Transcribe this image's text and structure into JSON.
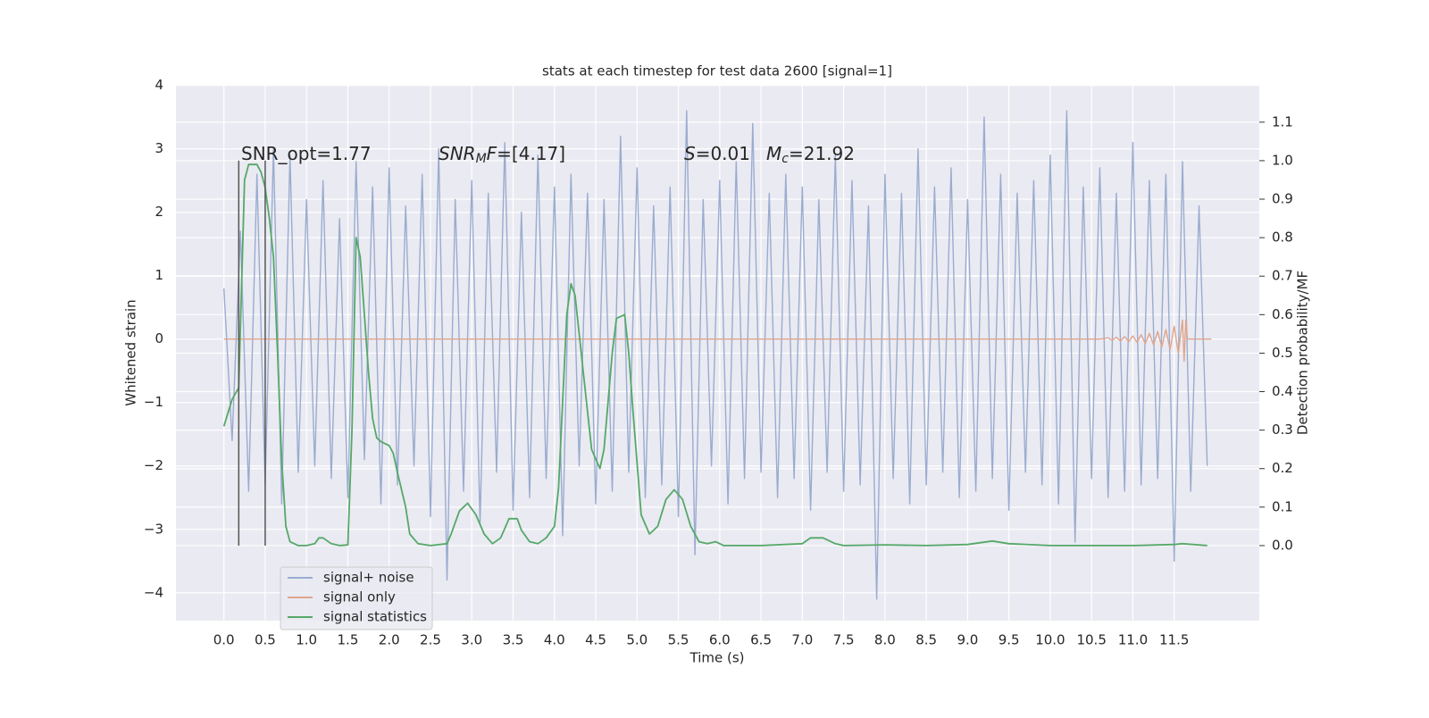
{
  "chart_data": {
    "type": "line",
    "title": "stats at each timestep for test data 2600 [signal=1]",
    "xlabel": "Time (s)",
    "ylabel": "Whitened strain",
    "y2label": "Detection probability/MF",
    "xlim": [
      -0.58,
      12.53
    ],
    "ylim": [
      -4.44,
      4.01
    ],
    "y2lim": [
      -0.195,
      1.197
    ],
    "xticks": [
      {
        "value": 0,
        "label": "0.0"
      },
      0.5,
      {
        "value": 1,
        "label": "1.0"
      },
      1.5,
      {
        "value": 2,
        "label": "2.0"
      },
      2.5,
      {
        "value": 3,
        "label": "3.0"
      },
      3.5,
      {
        "value": 4,
        "label": "4.0"
      },
      4.5,
      {
        "value": 5,
        "label": "5.0"
      },
      5.5,
      {
        "value": 6,
        "label": "6.0"
      },
      6.5,
      {
        "value": 7,
        "label": "7.0"
      },
      7.5,
      {
        "value": 8,
        "label": "8.0"
      },
      8.5,
      {
        "value": 9,
        "label": "9.0"
      },
      9.5,
      {
        "value": 10,
        "label": "10.0"
      },
      10.5,
      {
        "value": 11,
        "label": "11.0"
      },
      11.5
    ],
    "yticks": [
      {
        "value": -4,
        "label": "−4"
      },
      {
        "value": -3,
        "label": "−3"
      },
      {
        "value": -2,
        "label": "−2"
      },
      {
        "value": -1,
        "label": "−1"
      },
      0,
      1,
      2,
      3,
      4
    ],
    "y2ticks": [
      {
        "value": 0,
        "label": "0.0"
      },
      0.1,
      0.2,
      0.3,
      0.4,
      0.5,
      0.6,
      0.7,
      0.8,
      0.9,
      {
        "value": 1,
        "label": "1.0"
      },
      1.1
    ],
    "grid": true,
    "annotations": [
      [
        {
          "text": "SNR_opt=1.77"
        }
      ],
      [
        {
          "text": "SNR",
          "style": "italic"
        },
        {
          "text": "M",
          "style": "italic-sub"
        },
        {
          "text": "F",
          "style": "italic"
        },
        {
          "text": "=[4.17]"
        }
      ],
      [
        {
          "text": "S",
          "style": "italic"
        },
        {
          "text": "=0.01"
        }
      ],
      [
        {
          "text": "M",
          "style": "italic"
        },
        {
          "text": "c",
          "style": "italic-sub"
        },
        {
          "text": "=21.92"
        }
      ]
    ],
    "vlines": {
      "x": [
        0.18,
        0.5
      ],
      "color": "#555555"
    },
    "series": [
      {
        "name": "signal+ noise",
        "color": "#9aaccf",
        "x": [
          0.0,
          0.1,
          0.2,
          0.3,
          0.4,
          0.5,
          0.6,
          0.7,
          0.8,
          0.9,
          1.0,
          1.1,
          1.2,
          1.3,
          1.4,
          1.5,
          1.6,
          1.7,
          1.8,
          1.9,
          2.0,
          2.1,
          2.2,
          2.3,
          2.4,
          2.5,
          2.6,
          2.7,
          2.8,
          2.9,
          3.0,
          3.1,
          3.2,
          3.3,
          3.4,
          3.5,
          3.6,
          3.7,
          3.8,
          3.9,
          4.0,
          4.1,
          4.2,
          4.3,
          4.4,
          4.5,
          4.6,
          4.7,
          4.8,
          4.9,
          5.0,
          5.1,
          5.2,
          5.3,
          5.4,
          5.5,
          5.6,
          5.7,
          5.8,
          5.9,
          6.0,
          6.1,
          6.2,
          6.3,
          6.4,
          6.5,
          6.6,
          6.7,
          6.8,
          6.9,
          7.0,
          7.1,
          7.2,
          7.3,
          7.4,
          7.5,
          7.6,
          7.7,
          7.8,
          7.9,
          8.0,
          8.1,
          8.2,
          8.3,
          8.4,
          8.5,
          8.6,
          8.7,
          8.8,
          8.9,
          9.0,
          9.1,
          9.2,
          9.3,
          9.4,
          9.5,
          9.6,
          9.7,
          9.8,
          9.9,
          10.0,
          10.1,
          10.2,
          10.3,
          10.4,
          10.5,
          10.6,
          10.7,
          10.8,
          10.9,
          11.0,
          11.1,
          11.2,
          11.3,
          11.4,
          11.5,
          11.6,
          11.7,
          11.8,
          11.9
        ],
        "values": [
          0.8,
          -1.6,
          1.7,
          -2.4,
          2.6,
          -2.3,
          3.0,
          -2.6,
          2.9,
          -2.1,
          2.2,
          -2.0,
          2.5,
          -2.2,
          1.9,
          -2.5,
          2.8,
          -1.9,
          2.4,
          -2.6,
          2.7,
          -2.3,
          2.1,
          -2.0,
          2.6,
          -2.8,
          3.0,
          -3.8,
          2.2,
          -2.4,
          2.5,
          -2.9,
          2.3,
          -2.1,
          3.1,
          -2.7,
          2.0,
          -2.5,
          2.9,
          -2.2,
          2.4,
          -3.1,
          2.6,
          -2.0,
          2.3,
          -2.6,
          2.2,
          -2.4,
          3.2,
          -2.1,
          2.7,
          -2.5,
          2.1,
          -2.3,
          2.4,
          -2.8,
          3.6,
          -3.4,
          2.2,
          -2.0,
          2.5,
          -2.6,
          2.8,
          -2.2,
          3.4,
          -2.1,
          2.3,
          -2.5,
          2.6,
          -2.2,
          2.4,
          -2.7,
          2.2,
          -2.1,
          2.9,
          -2.4,
          2.5,
          -2.3,
          2.1,
          -4.1,
          2.6,
          -2.2,
          2.3,
          -2.6,
          3.0,
          -2.3,
          2.4,
          -2.1,
          2.7,
          -2.5,
          2.2,
          -2.4,
          3.5,
          -2.2,
          2.6,
          -2.7,
          2.3,
          -2.1,
          2.5,
          -2.3,
          2.9,
          -2.6,
          3.6,
          -3.2,
          2.4,
          -2.2,
          2.7,
          -2.5,
          2.3,
          -2.4,
          3.1,
          -2.3,
          2.5,
          -2.2,
          2.6,
          -3.5,
          2.8,
          -2.4,
          2.1,
          -2.0
        ]
      },
      {
        "name": "signal only",
        "color": "#e0a58c",
        "x": [
          0,
          10.6,
          10.7,
          10.75,
          10.8,
          10.85,
          10.9,
          10.95,
          11.0,
          11.05,
          11.1,
          11.15,
          11.2,
          11.25,
          11.3,
          11.35,
          11.4,
          11.45,
          11.5,
          11.55,
          11.6,
          11.62,
          11.64,
          11.66,
          11.7,
          11.95
        ],
        "values": [
          0,
          0,
          0.02,
          -0.02,
          0.03,
          -0.03,
          0.04,
          -0.04,
          0.05,
          -0.05,
          0.07,
          -0.07,
          0.09,
          -0.09,
          0.12,
          -0.12,
          0.15,
          -0.16,
          0.2,
          -0.22,
          0.3,
          -0.35,
          0.3,
          0,
          0,
          0
        ]
      },
      {
        "name": "signal statistics",
        "color": "#55a868",
        "axis": "y2",
        "x": [
          0.0,
          0.1,
          0.18,
          0.25,
          0.3,
          0.4,
          0.45,
          0.5,
          0.55,
          0.6,
          0.65,
          0.7,
          0.75,
          0.8,
          0.9,
          1.0,
          1.1,
          1.15,
          1.2,
          1.3,
          1.4,
          1.5,
          1.55,
          1.6,
          1.65,
          1.7,
          1.75,
          1.8,
          1.85,
          1.9,
          2.0,
          2.05,
          2.1,
          2.2,
          2.25,
          2.35,
          2.5,
          2.7,
          2.75,
          2.85,
          2.95,
          3.05,
          3.15,
          3.25,
          3.35,
          3.45,
          3.55,
          3.6,
          3.7,
          3.8,
          3.9,
          4.0,
          4.05,
          4.15,
          4.2,
          4.25,
          4.35,
          4.45,
          4.55,
          4.6,
          4.7,
          4.75,
          4.85,
          4.9,
          4.95,
          5.05,
          5.15,
          5.25,
          5.35,
          5.45,
          5.55,
          5.65,
          5.75,
          5.85,
          5.95,
          6.05,
          6.5,
          7.0,
          7.1,
          7.25,
          7.4,
          7.5,
          8.0,
          8.5,
          9.0,
          9.3,
          9.5,
          10.0,
          11.0,
          11.5,
          11.6,
          11.9
        ],
        "values": [
          0.31,
          0.38,
          0.41,
          0.95,
          0.99,
          0.99,
          0.97,
          0.93,
          0.85,
          0.75,
          0.5,
          0.22,
          0.05,
          0.01,
          0.0,
          0.0,
          0.005,
          0.02,
          0.02,
          0.005,
          0.0,
          0.002,
          0.3,
          0.8,
          0.75,
          0.6,
          0.45,
          0.33,
          0.28,
          0.27,
          0.26,
          0.24,
          0.19,
          0.1,
          0.03,
          0.005,
          0.0,
          0.005,
          0.03,
          0.09,
          0.11,
          0.08,
          0.03,
          0.005,
          0.02,
          0.07,
          0.07,
          0.04,
          0.01,
          0.005,
          0.02,
          0.05,
          0.15,
          0.6,
          0.68,
          0.65,
          0.45,
          0.25,
          0.2,
          0.25,
          0.5,
          0.59,
          0.6,
          0.5,
          0.35,
          0.08,
          0.03,
          0.05,
          0.12,
          0.145,
          0.12,
          0.05,
          0.01,
          0.005,
          0.01,
          0.0,
          0.0,
          0.005,
          0.02,
          0.02,
          0.005,
          0.0,
          0.002,
          0.0,
          0.003,
          0.012,
          0.005,
          0.0,
          0.0,
          0.003,
          0.005,
          0.0
        ]
      }
    ]
  }
}
